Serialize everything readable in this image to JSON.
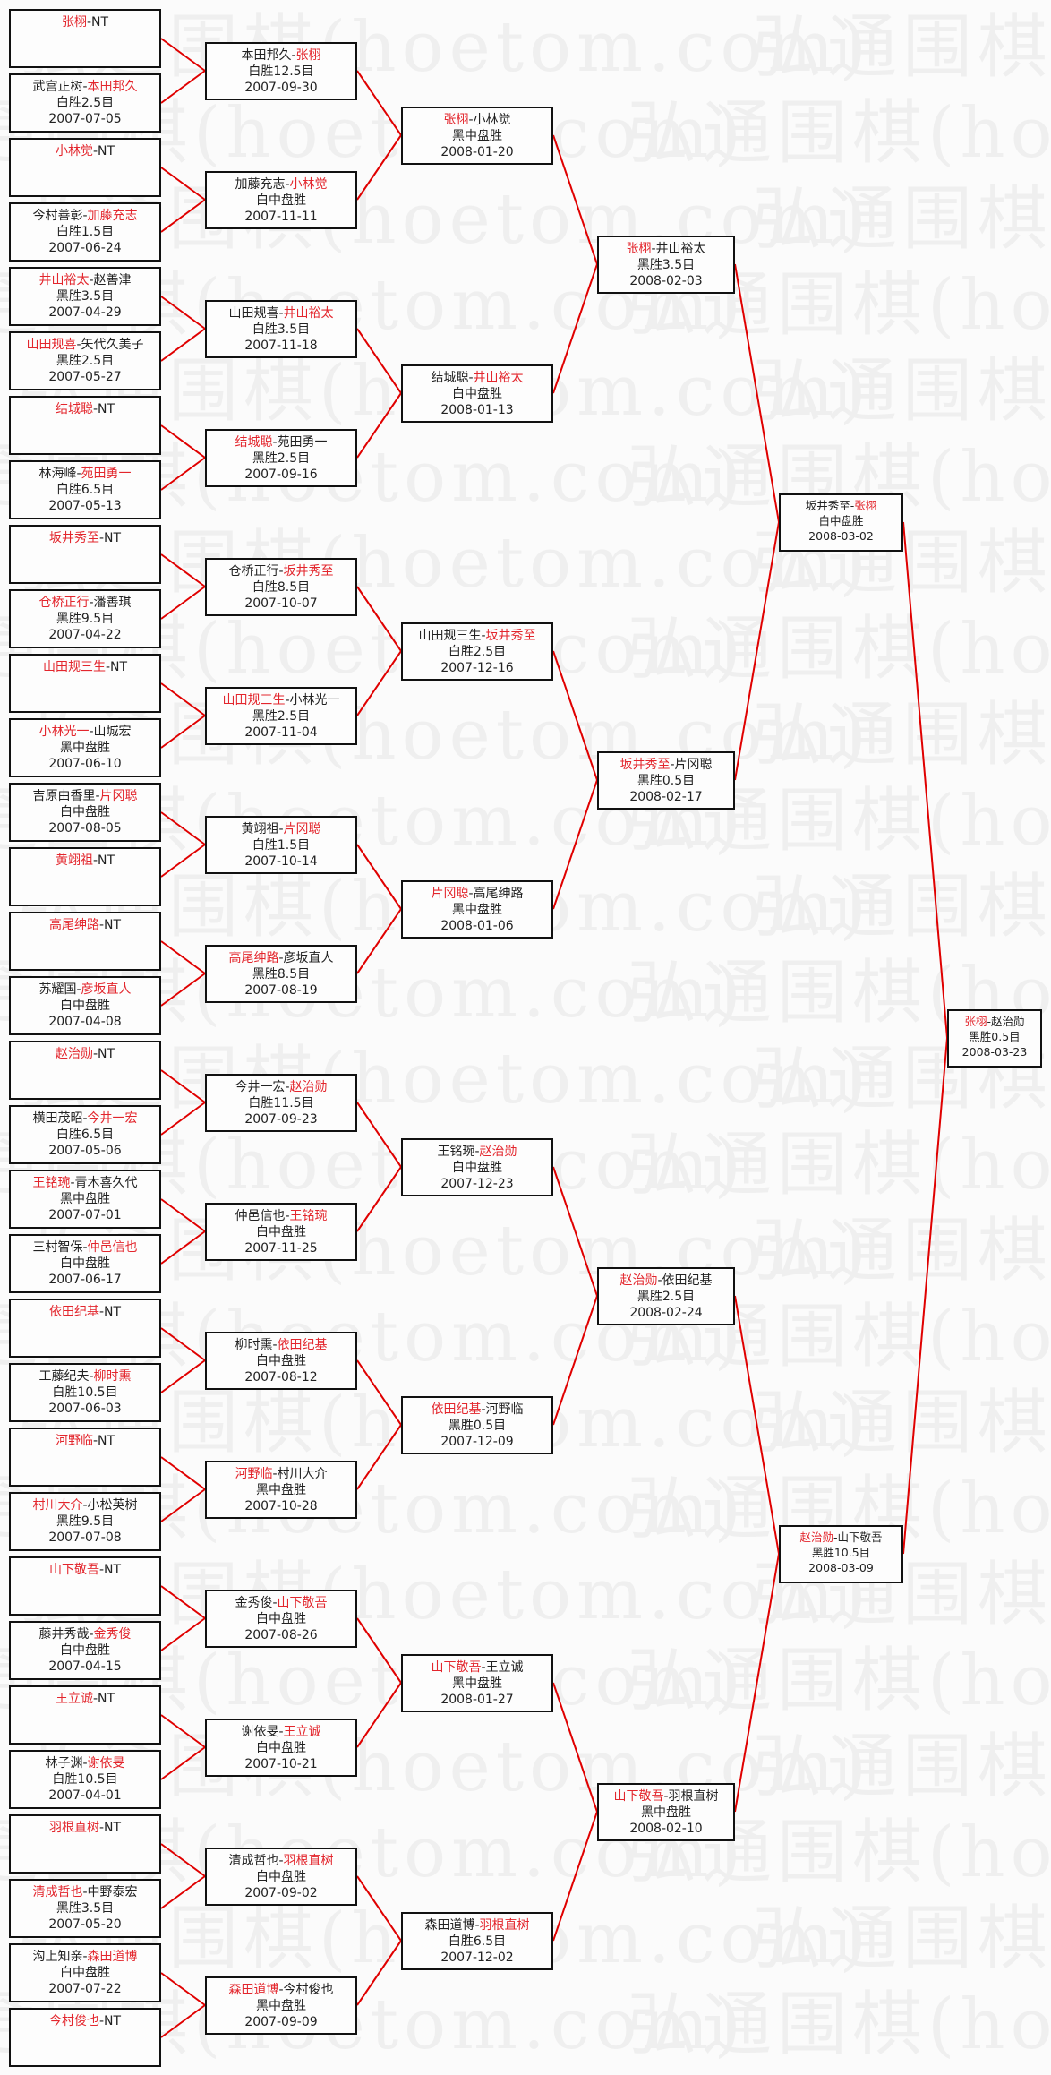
{
  "watermark": "弘通围棋(hoetom.com)",
  "colors": {
    "winner": "#e3262d",
    "line": "#e00000",
    "border": "#111111"
  },
  "rounds": [
    [
      {
        "a": "张栩",
        "b": "NT",
        "winner": "a"
      },
      {
        "a": "武宫正树",
        "b": "本田邦久",
        "winner": "b",
        "result": "白胜2.5目",
        "date": "2007-07-05"
      },
      {
        "a": "小林觉",
        "b": "NT",
        "winner": "a"
      },
      {
        "a": "今村善彰",
        "b": "加藤充志",
        "winner": "b",
        "result": "白胜1.5目",
        "date": "2007-06-24"
      },
      {
        "a": "井山裕太",
        "b": "赵善津",
        "winner": "a",
        "result": "黑胜3.5目",
        "date": "2007-04-29"
      },
      {
        "a": "山田规喜",
        "b": "矢代久美子",
        "winner": "a",
        "result": "黑胜2.5目",
        "date": "2007-05-27"
      },
      {
        "a": "结城聪",
        "b": "NT",
        "winner": "a"
      },
      {
        "a": "林海峰",
        "b": "苑田勇一",
        "winner": "b",
        "result": "白胜6.5目",
        "date": "2007-05-13"
      },
      {
        "a": "坂井秀至",
        "b": "NT",
        "winner": "a"
      },
      {
        "a": "仓桥正行",
        "b": "潘善琪",
        "winner": "a",
        "result": "黑胜9.5目",
        "date": "2007-04-22"
      },
      {
        "a": "山田规三生",
        "b": "NT",
        "winner": "a"
      },
      {
        "a": "小林光一",
        "b": "山城宏",
        "winner": "a",
        "result": "黑中盘胜",
        "date": "2007-06-10"
      },
      {
        "a": "吉原由香里",
        "b": "片冈聪",
        "winner": "b",
        "result": "白中盘胜",
        "date": "2007-08-05"
      },
      {
        "a": "黄翊祖",
        "b": "NT",
        "winner": "a"
      },
      {
        "a": "高尾绅路",
        "b": "NT",
        "winner": "a"
      },
      {
        "a": "苏耀国",
        "b": "彦坂直人",
        "winner": "b",
        "result": "白中盘胜",
        "date": "2007-04-08"
      },
      {
        "a": "赵治勋",
        "b": "NT",
        "winner": "a"
      },
      {
        "a": "横田茂昭",
        "b": "今井一宏",
        "winner": "b",
        "result": "白胜6.5目",
        "date": "2007-05-06"
      },
      {
        "a": "王铭琬",
        "b": "青木喜久代",
        "winner": "a",
        "result": "黑中盘胜",
        "date": "2007-07-01"
      },
      {
        "a": "三村智保",
        "b": "仲邑信也",
        "winner": "b",
        "result": "白中盘胜",
        "date": "2007-06-17"
      },
      {
        "a": "依田纪基",
        "b": "NT",
        "winner": "a"
      },
      {
        "a": "工藤纪夫",
        "b": "柳时熏",
        "winner": "b",
        "result": "白胜10.5目",
        "date": "2007-06-03"
      },
      {
        "a": "河野临",
        "b": "NT",
        "winner": "a"
      },
      {
        "a": "村川大介",
        "b": "小松英树",
        "winner": "a",
        "result": "黑胜9.5目",
        "date": "2007-07-08"
      },
      {
        "a": "山下敬吾",
        "b": "NT",
        "winner": "a"
      },
      {
        "a": "藤井秀哉",
        "b": "金秀俊",
        "winner": "b",
        "result": "白中盘胜",
        "date": "2007-04-15"
      },
      {
        "a": "王立诚",
        "b": "NT",
        "winner": "a"
      },
      {
        "a": "林子渊",
        "b": "谢依旻",
        "winner": "b",
        "result": "白胜10.5目",
        "date": "2007-04-01"
      },
      {
        "a": "羽根直树",
        "b": "NT",
        "winner": "a"
      },
      {
        "a": "清成哲也",
        "b": "中野泰宏",
        "winner": "a",
        "result": "黑胜3.5目",
        "date": "2007-05-20"
      },
      {
        "a": "沟上知亲",
        "b": "森田道博",
        "winner": "b",
        "result": "白中盘胜",
        "date": "2007-07-22"
      },
      {
        "a": "今村俊也",
        "b": "NT",
        "winner": "a"
      }
    ],
    [
      {
        "a": "本田邦久",
        "b": "张栩",
        "winner": "b",
        "result": "白胜12.5目",
        "date": "2007-09-30"
      },
      {
        "a": "加藤充志",
        "b": "小林觉",
        "winner": "b",
        "result": "白中盘胜",
        "date": "2007-11-11"
      },
      {
        "a": "山田规喜",
        "b": "井山裕太",
        "winner": "b",
        "result": "白胜3.5目",
        "date": "2007-11-18"
      },
      {
        "a": "结城聪",
        "b": "苑田勇一",
        "winner": "a",
        "result": "黑胜2.5目",
        "date": "2007-09-16"
      },
      {
        "a": "仓桥正行",
        "b": "坂井秀至",
        "winner": "b",
        "result": "白胜8.5目",
        "date": "2007-10-07"
      },
      {
        "a": "山田规三生",
        "b": "小林光一",
        "winner": "a",
        "result": "黑胜2.5目",
        "date": "2007-11-04"
      },
      {
        "a": "黄翊祖",
        "b": "片冈聪",
        "winner": "b",
        "result": "白胜1.5目",
        "date": "2007-10-14"
      },
      {
        "a": "高尾绅路",
        "b": "彦坂直人",
        "winner": "a",
        "result": "黑胜8.5目",
        "date": "2007-08-19"
      },
      {
        "a": "今井一宏",
        "b": "赵治勋",
        "winner": "b",
        "result": "白胜11.5目",
        "date": "2007-09-23"
      },
      {
        "a": "仲邑信也",
        "b": "王铭琬",
        "winner": "b",
        "result": "白中盘胜",
        "date": "2007-11-25"
      },
      {
        "a": "柳时熏",
        "b": "依田纪基",
        "winner": "b",
        "result": "白中盘胜",
        "date": "2007-08-12"
      },
      {
        "a": "河野临",
        "b": "村川大介",
        "winner": "a",
        "result": "黑中盘胜",
        "date": "2007-10-28"
      },
      {
        "a": "金秀俊",
        "b": "山下敬吾",
        "winner": "b",
        "result": "白中盘胜",
        "date": "2007-08-26"
      },
      {
        "a": "谢依旻",
        "b": "王立诚",
        "winner": "b",
        "result": "白中盘胜",
        "date": "2007-10-21"
      },
      {
        "a": "清成哲也",
        "b": "羽根直树",
        "winner": "b",
        "result": "白中盘胜",
        "date": "2007-09-02"
      },
      {
        "a": "森田道博",
        "b": "今村俊也",
        "winner": "a",
        "result": "黑中盘胜",
        "date": "2007-09-09"
      }
    ],
    [
      {
        "a": "张栩",
        "b": "小林觉",
        "winner": "a",
        "result": "黑中盘胜",
        "date": "2008-01-20"
      },
      {
        "a": "结城聪",
        "b": "井山裕太",
        "winner": "b",
        "result": "白中盘胜",
        "date": "2008-01-13"
      },
      {
        "a": "山田规三生",
        "b": "坂井秀至",
        "winner": "b",
        "result": "白胜2.5目",
        "date": "2007-12-16"
      },
      {
        "a": "片冈聪",
        "b": "高尾绅路",
        "winner": "a",
        "result": "黑中盘胜",
        "date": "2008-01-06"
      },
      {
        "a": "王铭琬",
        "b": "赵治勋",
        "winner": "b",
        "result": "白中盘胜",
        "date": "2007-12-23"
      },
      {
        "a": "依田纪基",
        "b": "河野临",
        "winner": "a",
        "result": "黑胜0.5目",
        "date": "2007-12-09"
      },
      {
        "a": "山下敬吾",
        "b": "王立诚",
        "winner": "a",
        "result": "黑中盘胜",
        "date": "2008-01-27"
      },
      {
        "a": "森田道博",
        "b": "羽根直树",
        "winner": "b",
        "result": "白胜6.5目",
        "date": "2007-12-02"
      }
    ],
    [
      {
        "a": "张栩",
        "b": "井山裕太",
        "winner": "a",
        "result": "黑胜3.5目",
        "date": "2008-02-03"
      },
      {
        "a": "坂井秀至",
        "b": "片冈聪",
        "winner": "a",
        "result": "黑胜0.5目",
        "date": "2008-02-17"
      },
      {
        "a": "赵治勋",
        "b": "依田纪基",
        "winner": "a",
        "result": "黑胜2.5目",
        "date": "2008-02-24"
      },
      {
        "a": "山下敬吾",
        "b": "羽根直树",
        "winner": "a",
        "result": "黑中盘胜",
        "date": "2008-02-10"
      }
    ],
    [
      {
        "a": "坂井秀至",
        "b": "张栩",
        "winner": "b",
        "result": "白中盘胜",
        "date": "2008-03-02"
      },
      {
        "a": "赵治勋",
        "b": "山下敬吾",
        "winner": "a",
        "result": "黑胜10.5目",
        "date": "2008-03-09"
      }
    ],
    [
      {
        "a": "张栩",
        "b": "赵治勋",
        "winner": "a",
        "result": "黑胜0.5目",
        "date": "2008-03-23"
      }
    ]
  ]
}
